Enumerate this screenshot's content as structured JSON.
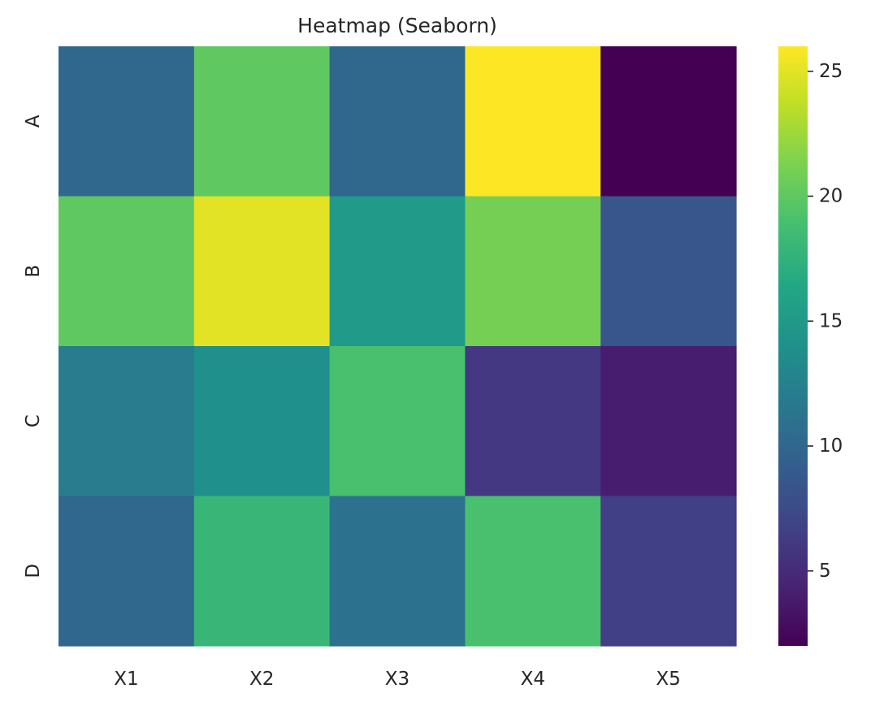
{
  "chart_data": {
    "type": "heatmap",
    "title": "Heatmap (Seaborn)",
    "xlabel": "",
    "ylabel": "",
    "x_categories": [
      "X1",
      "X2",
      "X3",
      "X4",
      "X5"
    ],
    "y_categories": [
      "A",
      "B",
      "C",
      "D"
    ],
    "values": [
      [
        10,
        20,
        10,
        26,
        2
      ],
      [
        20,
        25,
        15,
        21,
        8.5
      ],
      [
        12,
        14,
        19,
        6,
        4
      ],
      [
        10,
        18,
        11,
        19,
        6.5
      ]
    ],
    "colormap": "viridis",
    "vmin": 2,
    "vmax": 26,
    "colorbar": {
      "ticks": [
        5,
        10,
        15,
        20,
        25
      ]
    },
    "grid": false,
    "legend": "colorbar-right"
  }
}
